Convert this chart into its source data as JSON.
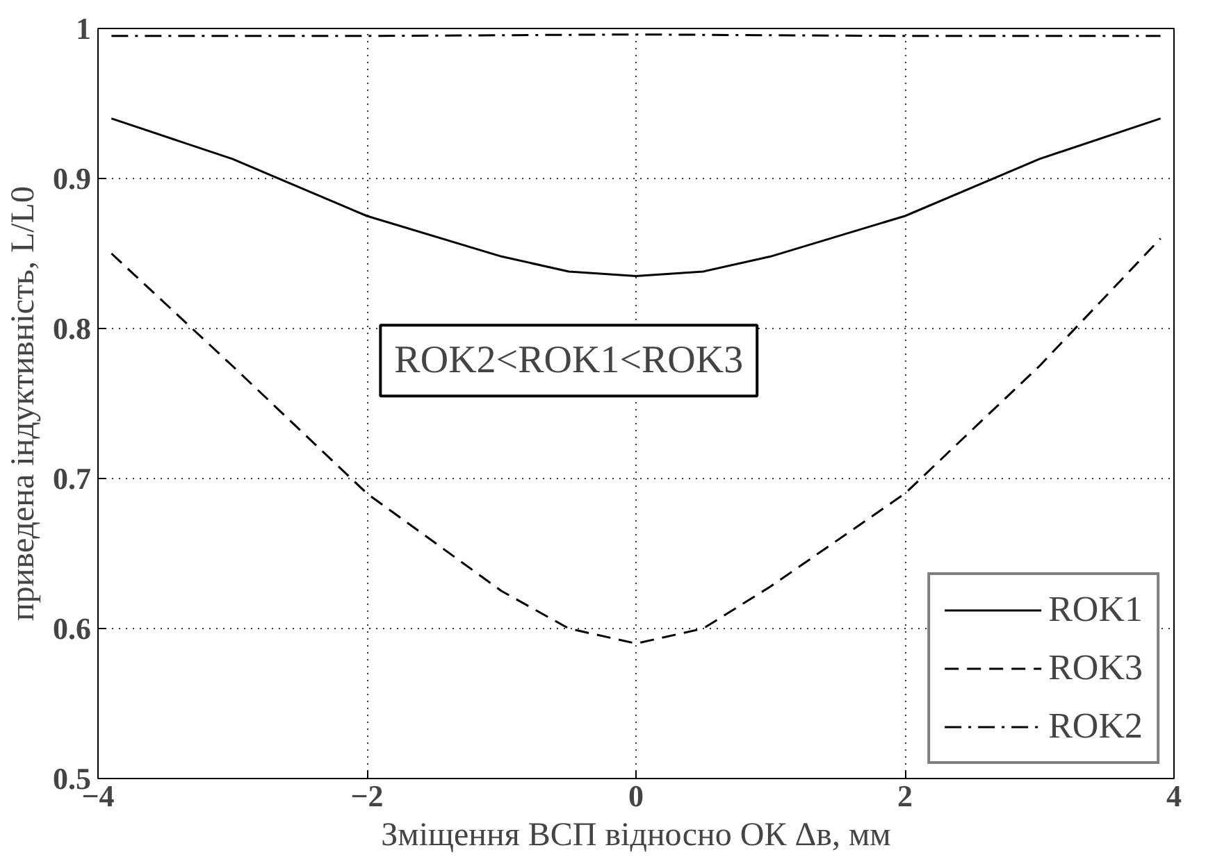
{
  "chart_data": {
    "type": "line",
    "xlabel": "Зміщення ВСП відносно ОК Δв, мм",
    "ylabel": "приведена індуктивність, L/L0",
    "xlim": [
      -4,
      4
    ],
    "xticks": [
      -4,
      -2,
      0,
      2,
      4
    ],
    "ylim": [
      0.5,
      1
    ],
    "yticks": [
      0.5,
      0.6,
      0.7,
      0.8,
      0.9,
      1
    ],
    "grid": true,
    "legend": "bottom right",
    "annotations": [
      {
        "text": "ROK2<ROK1<ROK3"
      }
    ],
    "series": [
      {
        "name": "ROK1",
        "color": "#000000",
        "line_style": "solid",
        "x": [
          -3.9,
          -3,
          -2,
          -1,
          -0.5,
          0,
          0.5,
          1,
          2,
          3,
          3.9
        ],
        "values": [
          0.94,
          0.913,
          0.875,
          0.848,
          0.838,
          0.835,
          0.838,
          0.848,
          0.875,
          0.913,
          0.94
        ]
      },
      {
        "name": "ROK3",
        "color": "#000000",
        "line_style": "dashed",
        "x": [
          -3.9,
          -3,
          -2,
          -1,
          -0.5,
          0,
          0.5,
          1,
          2,
          3,
          3.9
        ],
        "values": [
          0.85,
          0.775,
          0.69,
          0.625,
          0.6,
          0.59,
          0.6,
          0.628,
          0.69,
          0.775,
          0.86
        ]
      },
      {
        "name": "ROK2",
        "color": "#000000",
        "line_style": "dashdot",
        "x": [
          -3.9,
          -2,
          0,
          2,
          3.9
        ],
        "values": [
          0.995,
          0.995,
          0.996,
          0.995,
          0.995
        ]
      }
    ]
  }
}
